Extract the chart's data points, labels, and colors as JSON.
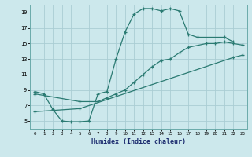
{
  "xlabel": "Humidex (Indice chaleur)",
  "bg_color": "#cce8ec",
  "line_color": "#2a7a72",
  "grid_color": "#b0d8dc",
  "xlim": [
    -0.5,
    23.5
  ],
  "ylim": [
    4,
    20
  ],
  "xticks": [
    0,
    1,
    2,
    3,
    4,
    5,
    6,
    7,
    8,
    9,
    10,
    11,
    12,
    13,
    14,
    15,
    16,
    17,
    18,
    19,
    20,
    21,
    22,
    23
  ],
  "yticks": [
    5,
    7,
    9,
    11,
    13,
    15,
    17,
    19
  ],
  "curve1": {
    "x": [
      0,
      1,
      2,
      3,
      4,
      5,
      6,
      7,
      8,
      9,
      10,
      11,
      12,
      13,
      14,
      15,
      16,
      17,
      18,
      21,
      22
    ],
    "y": [
      8.8,
      8.5,
      6.5,
      5.0,
      4.9,
      4.9,
      5.0,
      8.5,
      8.8,
      13.0,
      16.5,
      18.8,
      19.5,
      19.5,
      19.2,
      19.5,
      19.2,
      16.2,
      15.8,
      15.8,
      15.2
    ]
  },
  "curve2": {
    "x": [
      0,
      5,
      7,
      8,
      9,
      10,
      11,
      12,
      13,
      14,
      15,
      16,
      17,
      19,
      20,
      21,
      22,
      23
    ],
    "y": [
      8.5,
      7.5,
      7.5,
      8.0,
      8.5,
      9.0,
      10.0,
      11.0,
      12.0,
      12.8,
      13.0,
      13.8,
      14.5,
      15.0,
      15.0,
      15.2,
      15.0,
      14.8
    ]
  },
  "curve3": {
    "x": [
      0,
      5,
      22,
      23
    ],
    "y": [
      6.2,
      6.6,
      13.2,
      13.5
    ]
  }
}
